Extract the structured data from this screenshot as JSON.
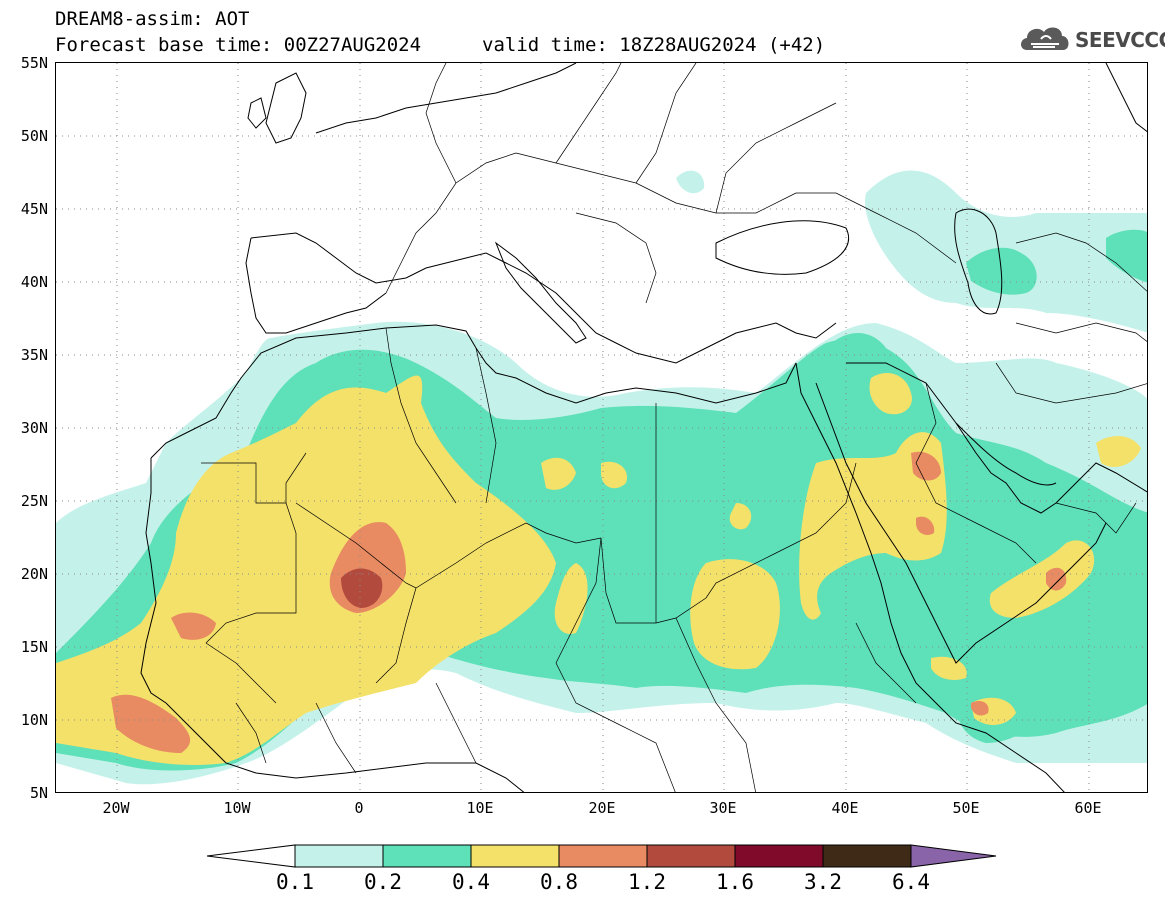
{
  "header": {
    "title": "DREAM8-assim: AOT",
    "base_time": "Forecast base time: 00Z27AUG2024",
    "valid_time": "valid time: 18Z28AUG2024 (+42)"
  },
  "logo": {
    "text": "SEEVCCC",
    "icon": "cloud-icon"
  },
  "map": {
    "variable": "AOT",
    "lat_range": [
      5,
      55
    ],
    "lon_range": [
      -25,
      65
    ],
    "lat_ticks": [
      "55N",
      "50N",
      "45N",
      "40N",
      "35N",
      "30N",
      "25N",
      "20N",
      "15N",
      "10N",
      "5N"
    ],
    "lon_ticks": [
      "20W",
      "10W",
      "0",
      "10E",
      "20E",
      "30E",
      "40E",
      "50E",
      "60E"
    ],
    "grid": "dotted"
  },
  "colorbar": {
    "labels": [
      "0.1",
      "0.2",
      "0.4",
      "0.8",
      "1.2",
      "1.6",
      "3.2",
      "6.4"
    ],
    "colors": [
      "#ffffff",
      "#c4f2ea",
      "#5ee0b8",
      "#f4e16a",
      "#e88a62",
      "#b24a3e",
      "#7f0a2a",
      "#3f2a18",
      "#8a64a8"
    ]
  }
}
